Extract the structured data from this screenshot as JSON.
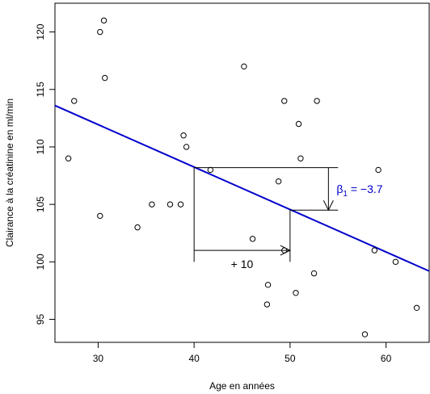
{
  "chart_data": {
    "type": "scatter",
    "title": "",
    "xlabel": "Age en années",
    "ylabel": "Clairance à la créatinine en ml/min",
    "xlim": [
      25.5,
      64.5
    ],
    "ylim": [
      93,
      122.5
    ],
    "grid": false,
    "x_ticks": [
      30,
      40,
      50,
      60
    ],
    "y_ticks": [
      95,
      100,
      105,
      110,
      115,
      120
    ],
    "points": [
      {
        "x": 26.9,
        "y": 109.0
      },
      {
        "x": 27.5,
        "y": 114.0
      },
      {
        "x": 30.2,
        "y": 120.0
      },
      {
        "x": 30.2,
        "y": 104.0
      },
      {
        "x": 30.6,
        "y": 121.0
      },
      {
        "x": 30.7,
        "y": 116.0
      },
      {
        "x": 34.1,
        "y": 103.0
      },
      {
        "x": 35.6,
        "y": 105.0
      },
      {
        "x": 37.5,
        "y": 105.0
      },
      {
        "x": 38.6,
        "y": 105.0
      },
      {
        "x": 38.9,
        "y": 111.0
      },
      {
        "x": 39.2,
        "y": 110.0
      },
      {
        "x": 41.7,
        "y": 108.0
      },
      {
        "x": 45.2,
        "y": 117.0
      },
      {
        "x": 46.1,
        "y": 102.0
      },
      {
        "x": 47.6,
        "y": 96.3
      },
      {
        "x": 47.7,
        "y": 98.0
      },
      {
        "x": 48.8,
        "y": 107.0
      },
      {
        "x": 49.4,
        "y": 114.0
      },
      {
        "x": 49.4,
        "y": 101.0
      },
      {
        "x": 50.6,
        "y": 97.3
      },
      {
        "x": 50.9,
        "y": 112.0
      },
      {
        "x": 51.1,
        "y": 109.0
      },
      {
        "x": 52.5,
        "y": 99.0
      },
      {
        "x": 52.8,
        "y": 114.0
      },
      {
        "x": 57.8,
        "y": 93.7
      },
      {
        "x": 58.8,
        "y": 101.0
      },
      {
        "x": 59.2,
        "y": 108.0
      },
      {
        "x": 61.0,
        "y": 100.0
      },
      {
        "x": 63.2,
        "y": 96.0
      }
    ],
    "regression_line": {
      "color": "#0000cc",
      "points": [
        {
          "x": 25.5,
          "y": 113.6
        },
        {
          "x": 64.5,
          "y": 99.2
        }
      ]
    },
    "annotations": {
      "x_step_label": "+ 10",
      "x_step": {
        "x0": 40,
        "x1": 50,
        "y": 101
      },
      "x_step_bracket": {
        "x0": 40,
        "y_top": 108.2,
        "y_bottom": 100
      },
      "slope_bracket": {
        "x0": 40,
        "x1": 55,
        "y_top": 108.2,
        "y_mid": 104.5,
        "x_vert": 50
      },
      "y_step_arrow": {
        "x": 54,
        "y0": 108.2,
        "y1": 104.5
      },
      "beta_label": {
        "prefix": "β",
        "subscript": "1",
        "suffix": " = −3.7",
        "color": "#0000cc"
      }
    }
  }
}
